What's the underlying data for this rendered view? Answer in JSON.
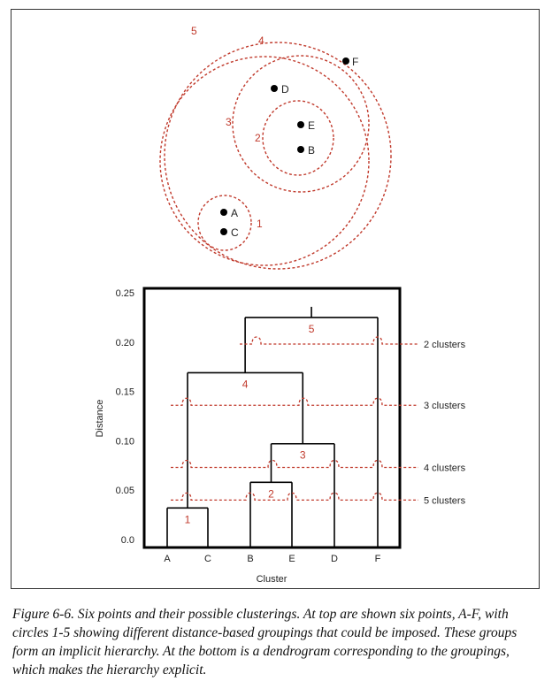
{
  "top_diagram": {
    "points": [
      "A",
      "B",
      "C",
      "D",
      "E",
      "F"
    ],
    "circle_labels": [
      "1",
      "2",
      "3",
      "4",
      "5"
    ]
  },
  "dendrogram": {
    "y_axis_label": "Distance",
    "x_axis_label": "Cluster",
    "y_ticks": [
      "0.0",
      "0.05",
      "0.10",
      "0.15",
      "0.20",
      "0.25"
    ],
    "leaves": [
      "A",
      "C",
      "B",
      "E",
      "D",
      "F"
    ],
    "merge_labels": [
      "1",
      "2",
      "3",
      "4",
      "5"
    ],
    "cut_labels": [
      "2 clusters",
      "3 clusters",
      "4 clusters",
      "5 clusters"
    ],
    "colors": {
      "line": "#000000",
      "dashed": "#c0392b"
    }
  },
  "chart_data": {
    "type": "dendrogram",
    "ylim": [
      0,
      0.25
    ],
    "leaves": [
      "A",
      "C",
      "B",
      "E",
      "D",
      "F"
    ],
    "merges": [
      {
        "label": "1",
        "join": [
          "A",
          "C"
        ],
        "height": 0.032
      },
      {
        "label": "2",
        "join": [
          "B",
          "E"
        ],
        "height": 0.058
      },
      {
        "label": "3",
        "join": [
          "BE",
          "D"
        ],
        "height": 0.097
      },
      {
        "label": "4",
        "join": [
          "AC",
          "BED"
        ],
        "height": 0.169
      },
      {
        "label": "5",
        "join": [
          "ACBED",
          "F"
        ],
        "height": 0.225
      }
    ],
    "cuts": [
      {
        "label": "2 clusters",
        "height": 0.198
      },
      {
        "label": "3 clusters",
        "height": 0.136
      },
      {
        "label": "4 clusters",
        "height": 0.073
      },
      {
        "label": "5 clusters",
        "height": 0.04
      }
    ]
  },
  "caption": "Figure 6-6. Six points and their possible clusterings. At top are shown six points, A-F, with circles 1-5 showing different distance-based groupings that could be imposed. These groups form an implicit hierarchy. At the bottom is a dendrogram corresponding to the groupings, which makes the hierarchy explicit."
}
